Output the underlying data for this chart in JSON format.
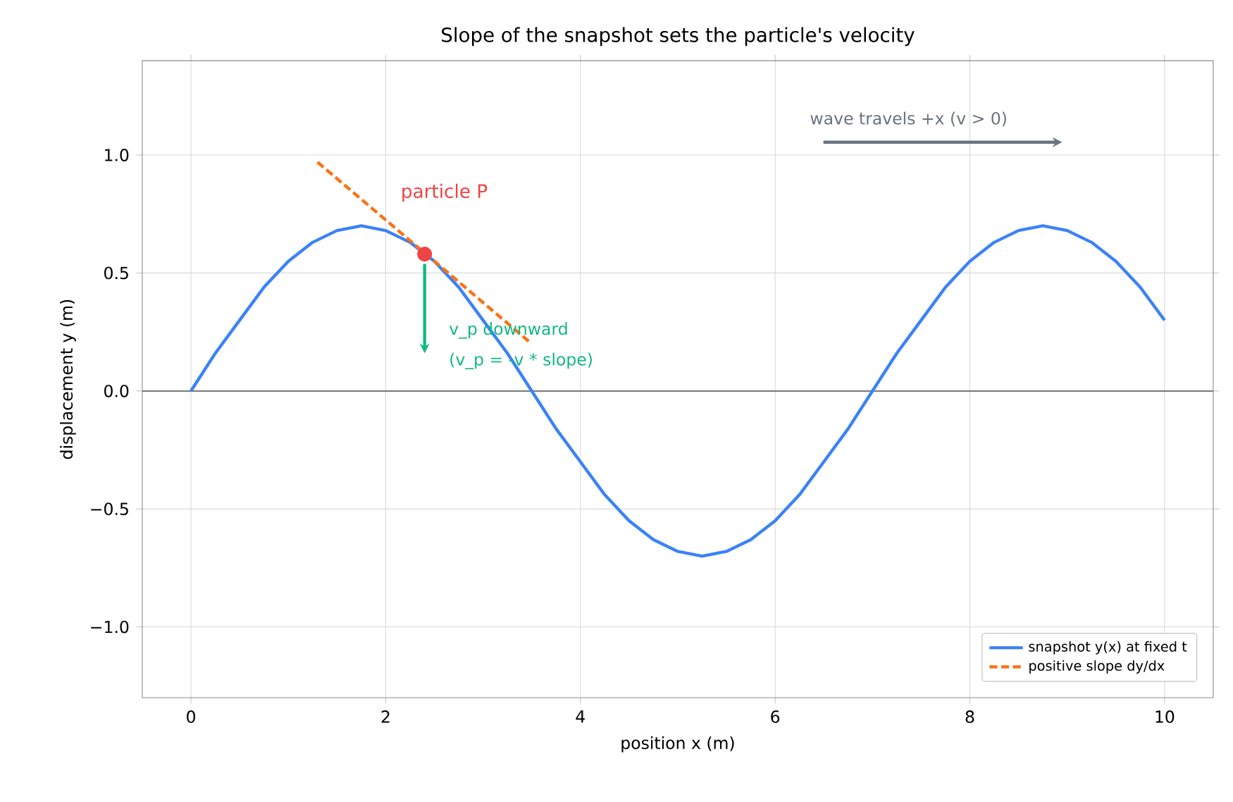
{
  "chart_data": {
    "type": "line",
    "title": "Slope of the snapshot sets the particle's velocity",
    "xlabel": "position x (m)",
    "ylabel": "displacement y (m)",
    "xlim": [
      -0.5,
      10.5
    ],
    "ylim": [
      -1.3,
      1.4
    ],
    "xticks": [
      0,
      2,
      4,
      6,
      8,
      10
    ],
    "yticks": [
      {
        "value": -1,
        "label": "−1.0"
      },
      {
        "value": -0.5,
        "label": "−0.5"
      },
      {
        "value": 0,
        "label": "0.0"
      },
      {
        "value": 0.5,
        "label": "0.5"
      },
      {
        "value": 1,
        "label": "1.0"
      }
    ],
    "grid": true,
    "legend": "bottom right",
    "ref_lines": [
      {
        "axis": "y",
        "value": 0,
        "color": "#808080"
      }
    ],
    "series": [
      {
        "name": "snapshot y(x) at fixed t",
        "color": "#3b82f6",
        "line_style": "solid",
        "x": [
          0,
          0.25,
          0.5,
          0.75,
          1,
          1.25,
          1.5,
          1.75,
          2,
          2.25,
          2.5,
          2.75,
          3,
          3.25,
          3.5,
          3.75,
          4,
          4.25,
          4.5,
          4.75,
          5,
          5.25,
          5.5,
          5.75,
          6,
          6.25,
          6.5,
          6.75,
          7,
          7.25,
          7.5,
          7.75,
          8,
          8.25,
          8.5,
          8.75,
          9,
          9.25,
          9.5,
          9.75,
          10
        ],
        "values": [
          0,
          0.16,
          0.3,
          0.44,
          0.55,
          0.63,
          0.68,
          0.7,
          0.68,
          0.63,
          0.55,
          0.44,
          0.3,
          0.16,
          0,
          -0.16,
          -0.3,
          -0.44,
          -0.55,
          -0.63,
          -0.68,
          -0.7,
          -0.68,
          -0.63,
          -0.55,
          -0.44,
          -0.3,
          -0.16,
          0,
          0.16,
          0.3,
          0.44,
          0.55,
          0.63,
          0.68,
          0.7,
          0.68,
          0.63,
          0.55,
          0.44,
          0.3
        ]
      },
      {
        "name": "positive slope dy/dx",
        "color": "#f97316",
        "line_style": "dashed",
        "x": [
          1.3,
          3.5
        ],
        "values": [
          0.97,
          0.2
        ]
      },
      {
        "color": "#ef4444",
        "type": "scatter",
        "x": [
          2.4
        ],
        "values": [
          0.58
        ]
      }
    ],
    "annotations": [
      "particle P",
      "v_p downward",
      "(v_p = -v * slope)",
      "wave travels +x (v > 0)"
    ]
  }
}
